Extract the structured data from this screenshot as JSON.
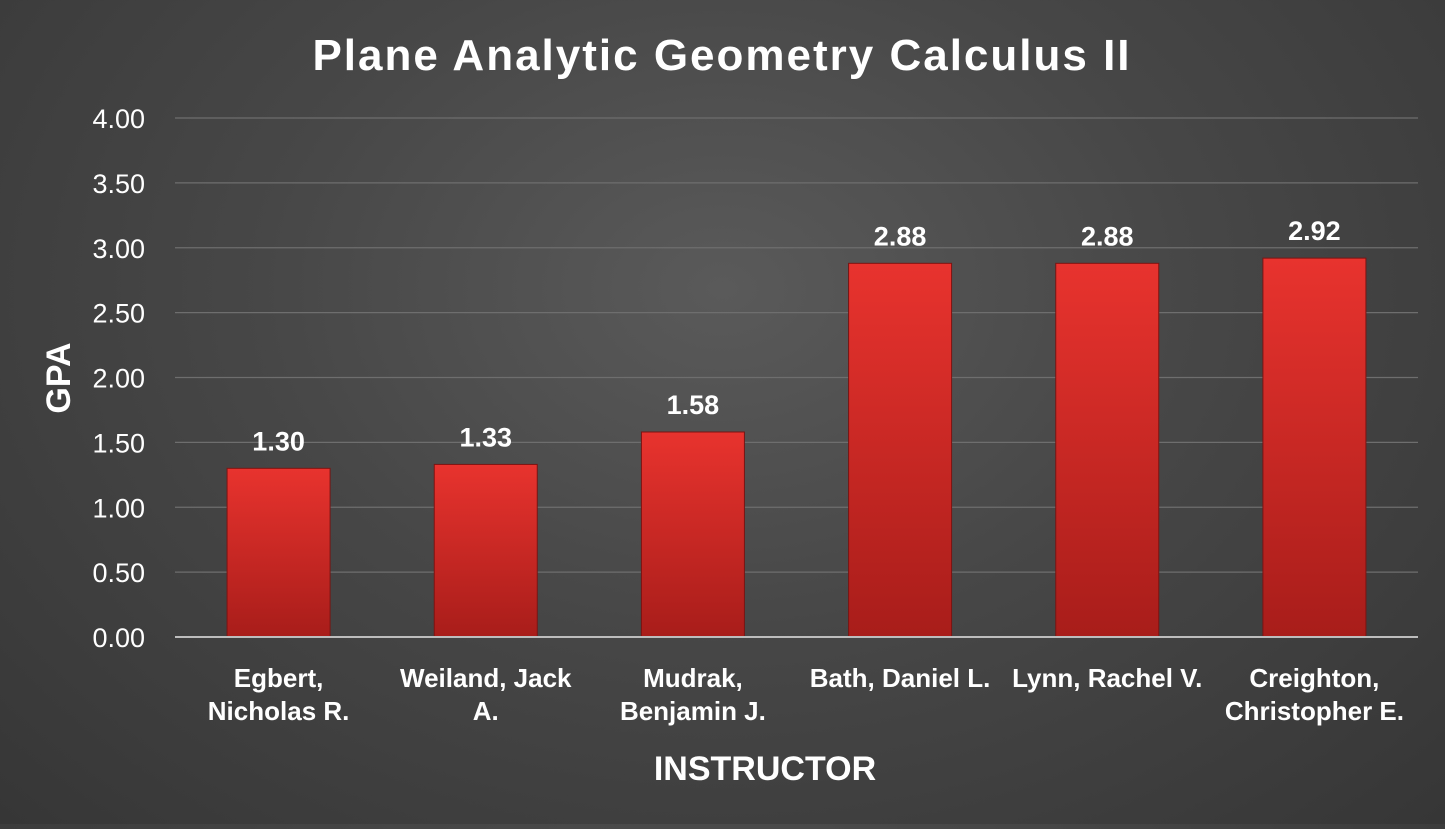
{
  "chart_data": {
    "type": "bar",
    "title": "Plane Analytic Geometry Calculus II",
    "xlabel": "INSTRUCTOR",
    "ylabel": "GPA",
    "categories": [
      [
        "Egbert,",
        "Nicholas R."
      ],
      [
        "Weiland, Jack",
        "A."
      ],
      [
        "Mudrak,",
        "Benjamin J."
      ],
      [
        "Bath, Daniel L."
      ],
      [
        "Lynn, Rachel V."
      ],
      [
        "Creighton,",
        "Christopher E."
      ]
    ],
    "values": [
      1.3,
      1.33,
      1.58,
      2.88,
      2.88,
      2.92
    ],
    "data_labels": [
      "1.30",
      "1.33",
      "1.58",
      "2.88",
      "2.88",
      "2.92"
    ],
    "ylim": [
      0,
      4
    ],
    "yticks": [
      "0.00",
      "0.50",
      "1.00",
      "1.50",
      "2.00",
      "2.50",
      "3.00",
      "3.50",
      "4.00"
    ],
    "grid": true,
    "legend": "none",
    "colors": {
      "bar_top": "#e8332e",
      "bar_bottom": "#a81d1a",
      "text": "#ffffff",
      "gridline": "#6e6e6e",
      "axis": "#bdbdbd"
    }
  }
}
